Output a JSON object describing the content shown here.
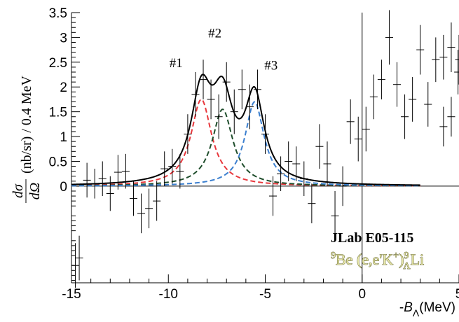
{
  "chart_data": {
    "type": "scatter",
    "title": "",
    "xlabel": "-B_Λ (MeV)",
    "xlabel_parts": {
      "minus": "-",
      "B": "B",
      "sub": "Λ",
      "unit": "(MeV)"
    },
    "ylabel": "dσ/dΩ (nb/sr) / 0.4 MeV",
    "ylabel_parts": {
      "num": "dσ",
      "den": "dΩ",
      "rest": "(nb/sr) / 0.4 MeV"
    },
    "xlim": [
      -15,
      5
    ],
    "ylim": [
      -1.95,
      3.5
    ],
    "x_ticks": [
      -15,
      -10,
      -5,
      0,
      5
    ],
    "x_tick_labels": [
      "-15",
      "-10",
      "-5",
      "0",
      "5"
    ],
    "y_ticks": [
      0,
      0.5,
      1,
      1.5,
      2,
      2.5,
      3,
      3.5
    ],
    "y_tick_labels": [
      "0",
      "0.5",
      "1",
      "1.5",
      "2",
      "2.5",
      "3",
      "3.5"
    ],
    "grid": false,
    "reference_lines": {
      "y": 0,
      "x": 0
    },
    "annotations": {
      "peaks": [
        {
          "label": "#1",
          "x": -9.6,
          "y": 2.4
        },
        {
          "label": "#2",
          "x": -7.6,
          "y": 3.0
        },
        {
          "label": "#3",
          "x": -4.7,
          "y": 2.35
        }
      ],
      "experiment": "JLab E05-115",
      "reaction": {
        "target_mass": "9",
        "target": "Be",
        "process": " (e,e'K",
        "plus": "+",
        "close": ")",
        "hyper_mass": "9",
        "hyper_sub": "Λ",
        "product": "Li"
      }
    },
    "points": [
      {
        "x": -14.8,
        "y": -1.6,
        "err": 0.45
      },
      {
        "x": -14.6,
        "y": -1.45,
        "err": 0.45
      },
      {
        "x": -14.2,
        "y": 0.12,
        "err": 0.35
      },
      {
        "x": -13.8,
        "y": 0.05,
        "err": 0.3
      },
      {
        "x": -13.4,
        "y": 0.15,
        "err": 0.35
      },
      {
        "x": -13.0,
        "y": -0.15,
        "err": 0.35
      },
      {
        "x": -12.6,
        "y": 0.28,
        "err": 0.35
      },
      {
        "x": -12.2,
        "y": 0.3,
        "err": 0.35
      },
      {
        "x": -11.8,
        "y": -0.25,
        "err": 0.35
      },
      {
        "x": -11.4,
        "y": -0.55,
        "err": 0.4
      },
      {
        "x": -11.0,
        "y": -0.45,
        "err": 0.4
      },
      {
        "x": -10.6,
        "y": -0.3,
        "err": 0.4
      },
      {
        "x": -10.2,
        "y": 0.35,
        "err": 0.35
      },
      {
        "x": -9.8,
        "y": 0.4,
        "err": 0.35
      },
      {
        "x": -9.4,
        "y": 0.3,
        "err": 0.35
      },
      {
        "x": -9.0,
        "y": 1.05,
        "err": 0.4
      },
      {
        "x": -8.6,
        "y": 1.85,
        "err": 0.45
      },
      {
        "x": -8.2,
        "y": 2.15,
        "err": 0.4
      },
      {
        "x": -7.8,
        "y": 1.75,
        "err": 0.4
      },
      {
        "x": -7.4,
        "y": 1.4,
        "err": 0.45
      },
      {
        "x": -7.0,
        "y": 2.1,
        "err": 0.4
      },
      {
        "x": -6.6,
        "y": 1.5,
        "err": 0.45
      },
      {
        "x": -6.2,
        "y": 1.95,
        "err": 0.4
      },
      {
        "x": -5.8,
        "y": 1.6,
        "err": 0.45
      },
      {
        "x": -5.4,
        "y": 1.95,
        "err": 0.4
      },
      {
        "x": -5.0,
        "y": 1.05,
        "err": 0.4
      },
      {
        "x": -4.6,
        "y": -0.2,
        "err": 0.4
      },
      {
        "x": -4.2,
        "y": 0.25,
        "err": 0.35
      },
      {
        "x": -3.8,
        "y": 0.5,
        "err": 0.4
      },
      {
        "x": -3.4,
        "y": 0.45,
        "err": 0.35
      },
      {
        "x": -3.0,
        "y": 0.15,
        "err": 0.35
      },
      {
        "x": -2.6,
        "y": -0.35,
        "err": 0.4
      },
      {
        "x": -2.2,
        "y": 0.8,
        "err": 0.45
      },
      {
        "x": -1.8,
        "y": 0.45,
        "err": 0.45
      },
      {
        "x": -1.4,
        "y": -0.6,
        "err": 0.5
      },
      {
        "x": -1.0,
        "y": 0.0,
        "err": 0.4
      },
      {
        "x": -0.6,
        "y": 1.3,
        "err": 0.45
      },
      {
        "x": -0.2,
        "y": 0.95,
        "err": 0.45
      },
      {
        "x": 0.2,
        "y": 1.15,
        "err": 0.45
      },
      {
        "x": 0.6,
        "y": 1.8,
        "err": 0.45
      },
      {
        "x": 1.0,
        "y": 2.15,
        "err": 0.4
      },
      {
        "x": 1.4,
        "y": 3.0,
        "err": 0.55
      },
      {
        "x": 1.8,
        "y": 2.05,
        "err": 0.45
      },
      {
        "x": 2.2,
        "y": 1.4,
        "err": 0.45
      },
      {
        "x": 2.6,
        "y": 1.75,
        "err": 0.45
      },
      {
        "x": 3.0,
        "y": 2.75,
        "err": 0.5
      },
      {
        "x": 3.4,
        "y": 1.65,
        "err": 0.45
      },
      {
        "x": 3.8,
        "y": 2.55,
        "err": 0.45
      },
      {
        "x": 4.2,
        "y": 2.6,
        "err": 0.45
      },
      {
        "x": 4.6,
        "y": 2.8,
        "err": 0.5
      },
      {
        "x": 5.0,
        "y": 2.55,
        "err": 0.5
      },
      {
        "x": 4.2,
        "y": 1.2,
        "err": 0.4
      },
      {
        "x": 4.6,
        "y": 1.4,
        "err": 0.4
      },
      {
        "x": 4.95,
        "y": 2.3,
        "err": 0.45
      }
    ],
    "series": [
      {
        "component": "total",
        "color": "#000000",
        "dash": "solid"
      },
      {
        "component": "peak-1",
        "color": "#e8383d",
        "dash": "dashed",
        "center": -8.3,
        "amplitude": 1.75,
        "width": 0.65
      },
      {
        "component": "peak-2",
        "color": "#1e4d2b",
        "dash": "dashed",
        "center": -7.2,
        "amplitude": 1.55,
        "width": 0.65
      },
      {
        "component": "peak-3",
        "color": "#3b7fcf",
        "dash": "dashed",
        "center": -5.55,
        "amplitude": 1.7,
        "width": 0.6
      }
    ],
    "curve_range": [
      -15,
      3
    ]
  }
}
